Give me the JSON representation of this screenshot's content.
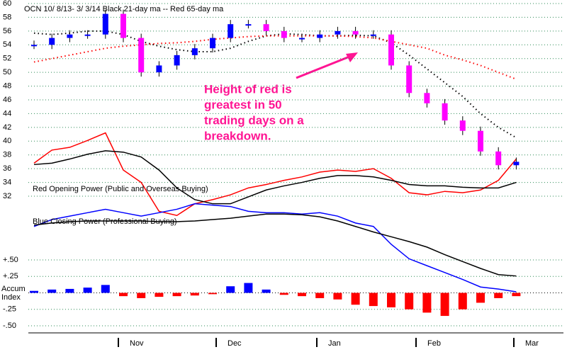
{
  "chart_data": {
    "type": "candlestick",
    "title": "OCN  10/ 8/13- 3/ 3/14   Black 21-day ma --  Red 65-day ma",
    "ylim": [
      32,
      60
    ],
    "yticks": [
      60,
      58,
      56,
      54,
      52,
      50,
      48,
      46,
      44,
      42,
      40,
      38,
      36,
      34,
      32
    ],
    "grid": true,
    "up_color": "#0000ff",
    "down_color": "#ff00ff",
    "close": [
      54,
      55,
      55.5,
      55.5,
      58.5,
      55,
      50,
      51,
      52.5,
      53.5,
      55,
      57,
      57,
      56,
      55,
      55,
      55.5,
      56,
      55.5,
      55.5,
      51,
      47,
      45.5,
      43,
      41.5,
      38.5,
      36.5,
      37
    ],
    "moving_averages": [
      {
        "color": "#000000",
        "values": [
          55.7,
          55.5,
          55.7,
          56,
          56,
          55.5,
          54.5,
          53.8,
          53.3,
          53,
          53,
          53.5,
          54.5,
          55.3,
          55.6,
          55.5,
          55.3,
          55.3,
          55.4,
          55.3,
          54.3,
          52.5,
          50.5,
          48.5,
          46.5,
          44,
          42,
          40.5
        ]
      },
      {
        "color": "#ff0000",
        "values": [
          51.5,
          52,
          52.5,
          53,
          53.5,
          53.8,
          54,
          54.2,
          54.3,
          54.5,
          54.8,
          55,
          55.2,
          55.3,
          55.3,
          55.3,
          55.3,
          55.3,
          55.2,
          55,
          54.5,
          54,
          53.5,
          52.5,
          51.8,
          51,
          50,
          49
        ]
      }
    ],
    "power_lines": [
      {
        "color": "#ff0000",
        "values": [
          36.8,
          38.7,
          39.1,
          40.1,
          41.2,
          35.8,
          34.0,
          29.8,
          29.2,
          30.9,
          31.5,
          32.2,
          33.2,
          33.7,
          34.3,
          34.8,
          35.5,
          35.8,
          35.6,
          36.0,
          34.6,
          32.5,
          32.2,
          32.7,
          32.5,
          32.9,
          34.3,
          37.4
        ]
      },
      {
        "color": "#000000",
        "values": [
          36.6,
          36.8,
          37.4,
          38.1,
          38.6,
          38.4,
          37.7,
          35.8,
          33.2,
          31.5,
          30.9,
          30.9,
          31.9,
          32.9,
          33.5,
          34.0,
          34.6,
          35.0,
          35.0,
          34.8,
          34.3,
          33.7,
          33.5,
          33.5,
          33.3,
          33.2,
          33.2,
          34.0
        ]
      },
      {
        "color": "#0000ff",
        "values": [
          27.6,
          28.6,
          29.1,
          29.6,
          30.1,
          29.6,
          29.1,
          29.6,
          30.1,
          30.9,
          30.7,
          30.5,
          29.8,
          29.6,
          29.6,
          29.4,
          29.6,
          29.1,
          28.1,
          27.6,
          25.0,
          22.9,
          21.9,
          20.9,
          19.9,
          18.8,
          18.5,
          18.1
        ]
      },
      {
        "color": "#000000",
        "values": [
          27.8,
          28.1,
          28.3,
          28.4,
          28.4,
          28.4,
          28.4,
          28.3,
          28.3,
          28.4,
          28.6,
          28.8,
          29.1,
          29.4,
          29.4,
          29.3,
          29.0,
          28.4,
          27.6,
          26.8,
          26.1,
          25.4,
          24.6,
          23.5,
          22.5,
          21.5,
          20.6,
          20.4
        ]
      }
    ],
    "red_power_label": "Red Opening Power (Public and Overseas Buying)",
    "blue_power_label": "Blue Closing Power (Professional Buying)",
    "annotation": [
      "Height of red is",
      "greatest in 50",
      "trading days on a",
      "breakdown."
    ],
    "accum": {
      "label": [
        "Accum",
        "Index"
      ],
      "ticks": [
        {
          "value": 0.5,
          "label": "+.50"
        },
        {
          "value": 0.25,
          "label": "+.25"
        },
        {
          "value": -0.25,
          "label": "-.25"
        },
        {
          "value": -0.5,
          "label": "-.50"
        }
      ],
      "values": [
        0.03,
        0.05,
        0.06,
        0.08,
        0.12,
        -0.05,
        -0.08,
        -0.06,
        -0.05,
        -0.04,
        -0.02,
        0.1,
        0.15,
        0.05,
        -0.03,
        -0.05,
        -0.08,
        -0.1,
        -0.18,
        -0.2,
        -0.22,
        -0.25,
        -0.3,
        -0.35,
        -0.25,
        -0.15,
        -0.08,
        -0.05
      ]
    },
    "months": [
      "Nov",
      "Dec",
      "Jan",
      "Feb",
      "Mar"
    ]
  }
}
